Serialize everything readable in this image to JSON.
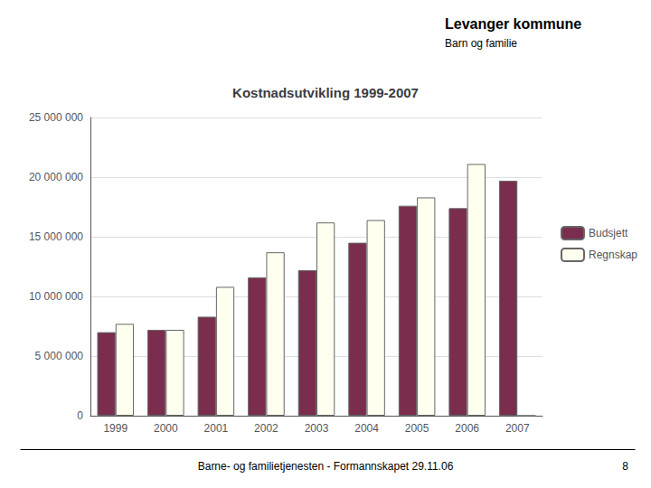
{
  "chart_data": {
    "type": "bar",
    "title": "Kostnadsutvikling 1999-2007",
    "categories": [
      "1999",
      "2000",
      "2001",
      "2002",
      "2003",
      "2004",
      "2005",
      "2006",
      "2007"
    ],
    "series": [
      {
        "name": "Budsjett",
        "color": "#7B2D4E",
        "values": [
          7000000,
          7200000,
          8300000,
          11600000,
          12200000,
          14500000,
          17600000,
          17400000,
          19700000
        ]
      },
      {
        "name": "Regnskap",
        "color": "#FFFFF0",
        "values": [
          7700000,
          7200000,
          10800000,
          13700000,
          16200000,
          16400000,
          18300000,
          21100000,
          0
        ]
      }
    ],
    "ylim": [
      0,
      25000000
    ],
    "yticks": [
      0,
      {
        "value": 5000000,
        "label": "5 000 000"
      },
      {
        "value": 10000000,
        "label": "10 000 000"
      },
      {
        "value": 15000000,
        "label": "15 000 000"
      },
      {
        "value": 20000000,
        "label": "20 000 000"
      },
      {
        "value": 25000000,
        "label": "25 000 000"
      }
    ],
    "grid": true,
    "legend": "right",
    "annotations": [
      "Levanger kommune",
      "Barn og familie",
      "Barne- og familietjenesten - Formannskapet 29.11.06",
      "8"
    ]
  }
}
